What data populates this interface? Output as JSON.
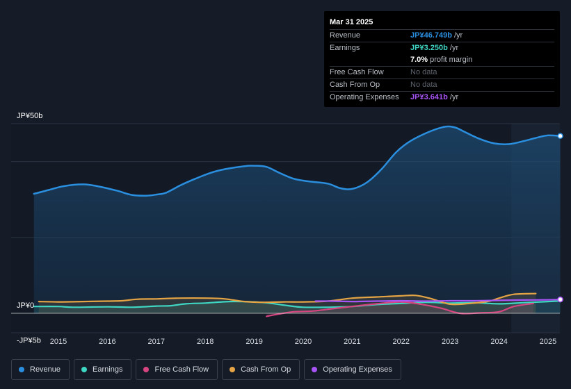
{
  "tooltip": {
    "date": "Mar 31 2025",
    "rows": [
      {
        "label": "Revenue",
        "value": "JP¥46.749b",
        "unit": " /yr",
        "color": "#2b8fe0"
      },
      {
        "label": "Earnings",
        "value": "JP¥3.250b",
        "unit": " /yr",
        "color": "#3fd6c3"
      },
      {
        "label": "",
        "value": "7.0%",
        "unit": " profit margin",
        "color": "#ffffff"
      },
      {
        "label": "Free Cash Flow",
        "value": "No data",
        "unit": "",
        "color": "#5d636d"
      },
      {
        "label": "Cash From Op",
        "value": "No data",
        "unit": "",
        "color": "#5d636d"
      },
      {
        "label": "Operating Expenses",
        "value": "JP¥3.641b",
        "unit": " /yr",
        "color": "#a855f7"
      }
    ]
  },
  "legend": [
    {
      "label": "Revenue",
      "color": "#2b8fe0"
    },
    {
      "label": "Earnings",
      "color": "#3fd6c3"
    },
    {
      "label": "Free Cash Flow",
      "color": "#d6457f"
    },
    {
      "label": "Cash From Op",
      "color": "#e6a545"
    },
    {
      "label": "Operating Expenses",
      "color": "#a855f7"
    }
  ],
  "chart_data": {
    "type": "line",
    "title": "",
    "xlabel": "",
    "ylabel": "",
    "ylim": [
      -5,
      50
    ],
    "y_tick_labels": [
      {
        "value": 50,
        "label": "JP¥50b"
      },
      {
        "value": 0,
        "label": "JP¥0"
      },
      {
        "value": -5,
        "label": "-JP¥5b"
      }
    ],
    "x_ticks": [
      2015,
      2016,
      2017,
      2018,
      2019,
      2020,
      2021,
      2022,
      2023,
      2024,
      2025
    ],
    "series": [
      {
        "name": "Revenue",
        "color": "#2b8fe0",
        "fill": true,
        "x": [
          2014.5,
          2014.8,
          2015.1,
          2015.5,
          2015.8,
          2016.2,
          2016.5,
          2016.8,
          2017.0,
          2017.2,
          2017.5,
          2017.8,
          2018.1,
          2018.4,
          2018.8,
          2019.0,
          2019.25,
          2019.5,
          2019.8,
          2020.1,
          2020.5,
          2020.75,
          2021.0,
          2021.3,
          2021.6,
          2021.9,
          2022.2,
          2022.6,
          2022.9,
          2023.1,
          2023.3,
          2023.6,
          2023.9,
          2024.2,
          2024.5,
          2024.8,
          2025.0,
          2025.25
        ],
        "values": [
          31.5,
          32.5,
          33.5,
          34.0,
          33.5,
          32.3,
          31.2,
          31.0,
          31.3,
          31.8,
          33.8,
          35.5,
          37.0,
          38.0,
          38.8,
          38.9,
          38.6,
          37.1,
          35.5,
          34.8,
          34.2,
          33.0,
          32.8,
          34.5,
          38.0,
          42.5,
          45.5,
          48.0,
          49.2,
          49.0,
          47.8,
          46.0,
          44.8,
          44.6,
          45.4,
          46.4,
          46.9,
          46.749
        ]
      },
      {
        "name": "Earnings",
        "color": "#3fd6c3",
        "fill": true,
        "x": [
          2014.5,
          2015.0,
          2015.3,
          2016.0,
          2016.5,
          2017.0,
          2017.3,
          2017.6,
          2018.0,
          2018.5,
          2019.0,
          2019.3,
          2019.7,
          2020.0,
          2020.5,
          2021.0,
          2021.5,
          2022.0,
          2022.5,
          2023.0,
          2023.5,
          2024.0,
          2024.5,
          2025.0,
          2025.25
        ],
        "values": [
          1.8,
          1.8,
          1.6,
          1.7,
          1.6,
          1.9,
          2.0,
          2.5,
          2.7,
          3.1,
          3.0,
          2.7,
          2.0,
          1.6,
          1.6,
          1.8,
          2.3,
          2.6,
          2.9,
          2.7,
          2.8,
          2.5,
          2.8,
          3.1,
          3.25
        ]
      },
      {
        "name": "Free Cash Flow",
        "color": "#d6457f",
        "fill": true,
        "x": [
          2019.25,
          2019.5,
          2019.8,
          2020.2,
          2020.6,
          2021.0,
          2021.5,
          2022.0,
          2022.4,
          2022.8,
          2023.2,
          2023.6,
          2024.0,
          2024.3,
          2024.7
        ],
        "values": [
          -0.8,
          -0.2,
          0.4,
          0.6,
          1.2,
          1.8,
          2.5,
          3.0,
          2.4,
          1.4,
          0.0,
          0.1,
          0.4,
          1.8,
          2.6
        ]
      },
      {
        "name": "Cash From Op",
        "color": "#e6a545",
        "fill": true,
        "x": [
          2014.6,
          2015.0,
          2015.5,
          2016.0,
          2016.3,
          2016.6,
          2017.0,
          2017.5,
          2018.0,
          2018.4,
          2018.8,
          2019.2,
          2019.6,
          2020.0,
          2020.5,
          2021.0,
          2021.5,
          2022.0,
          2022.3,
          2022.6,
          2023.0,
          2023.4,
          2023.8,
          2024.0,
          2024.3,
          2024.75
        ],
        "values": [
          3.1,
          3.0,
          3.1,
          3.2,
          3.3,
          3.7,
          3.8,
          4.0,
          4.0,
          3.8,
          3.1,
          2.9,
          3.0,
          3.0,
          3.2,
          4.0,
          4.3,
          4.6,
          4.7,
          3.9,
          2.4,
          2.6,
          3.2,
          4.0,
          5.0,
          5.2
        ]
      },
      {
        "name": "Operating Expenses",
        "color": "#a855f7",
        "fill": false,
        "x": [
          2020.25,
          2020.6,
          2021.0,
          2021.5,
          2022.0,
          2022.5,
          2023.0,
          2023.5,
          2024.0,
          2024.5,
          2025.0,
          2025.25
        ],
        "values": [
          3.2,
          3.2,
          3.1,
          3.2,
          3.3,
          3.2,
          3.3,
          3.3,
          3.4,
          3.5,
          3.55,
          3.641
        ]
      }
    ],
    "highlight_x": [
      2024.25,
      2025.25
    ]
  }
}
